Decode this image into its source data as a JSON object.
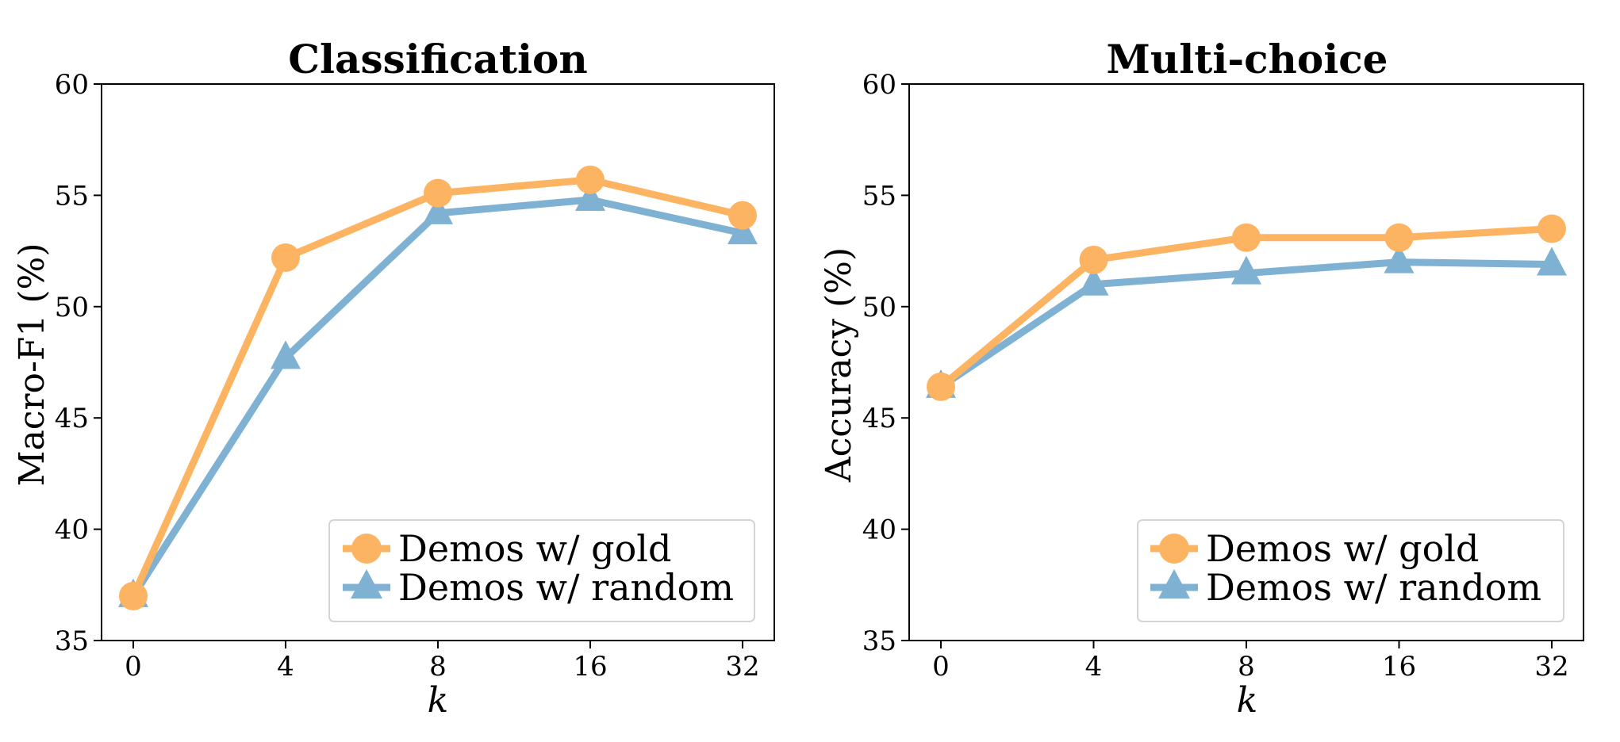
{
  "chart_data": [
    {
      "type": "line",
      "title": "Classification",
      "xlabel": "k",
      "ylabel": "Macro-F1 (%)",
      "categories": [
        "0",
        "4",
        "8",
        "16",
        "32"
      ],
      "ylim": [
        35,
        60
      ],
      "yticks": [
        "35",
        "40",
        "45",
        "50",
        "55",
        "60"
      ],
      "grid": false,
      "legend_position": "lower-right",
      "series": [
        {
          "name": "Demos w/ gold",
          "values": [
            37.0,
            52.2,
            55.1,
            55.7,
            54.1
          ],
          "color": "#fdb462",
          "marker": "circle"
        },
        {
          "name": "Demos w/ random",
          "values": [
            37.0,
            47.7,
            54.2,
            54.8,
            53.3
          ],
          "color": "#7fb1d3",
          "marker": "triangle"
        }
      ]
    },
    {
      "type": "line",
      "title": "Multi-choice",
      "xlabel": "k",
      "ylabel": "Accuracy (%)",
      "categories": [
        "0",
        "4",
        "8",
        "16",
        "32"
      ],
      "ylim": [
        35,
        60
      ],
      "yticks": [
        "35",
        "40",
        "45",
        "50",
        "55",
        "60"
      ],
      "grid": false,
      "legend_position": "lower-right",
      "series": [
        {
          "name": "Demos w/ gold",
          "values": [
            46.4,
            52.1,
            53.1,
            53.1,
            53.5
          ],
          "color": "#fdb462",
          "marker": "circle"
        },
        {
          "name": "Demos w/ random",
          "values": [
            46.4,
            51.0,
            51.5,
            52.0,
            51.9
          ],
          "color": "#7fb1d3",
          "marker": "triangle"
        }
      ]
    }
  ]
}
